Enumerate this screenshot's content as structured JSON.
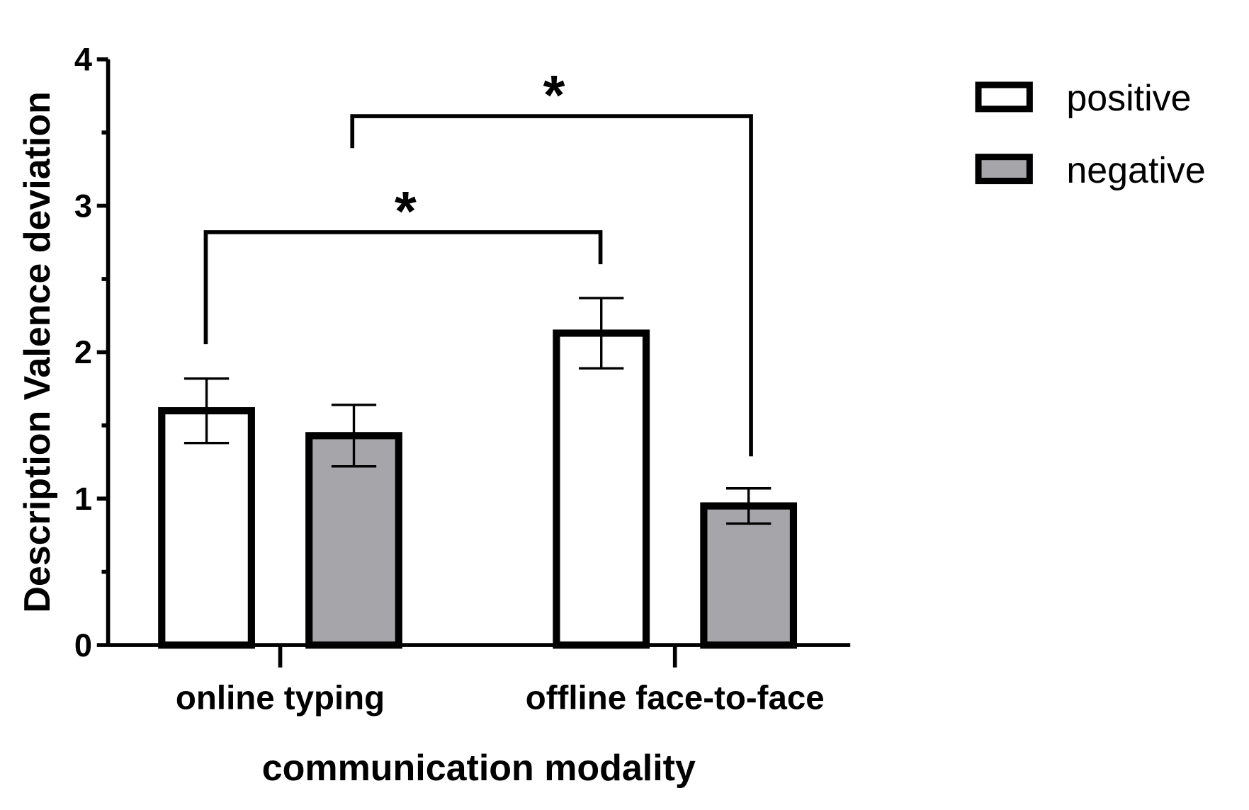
{
  "chart_data": {
    "type": "bar",
    "y_label": "Description Valence deviation",
    "x_label": "communication modality",
    "categories": [
      "online typing",
      "offline face-to-face"
    ],
    "series": [
      {
        "name": "positive",
        "color": "#ffffff",
        "values": [
          1.6,
          2.13
        ],
        "errors": [
          0.22,
          0.24
        ]
      },
      {
        "name": "negative",
        "color": "#a6a5aa",
        "values": [
          1.43,
          0.95
        ],
        "errors": [
          0.21,
          0.12
        ]
      }
    ],
    "ylim": [
      0,
      4
    ],
    "yticks": [
      0,
      1,
      2,
      3,
      4
    ],
    "annotations": [
      {
        "text": "*"
      },
      {
        "text": "*"
      }
    ],
    "legend": "top-right"
  }
}
